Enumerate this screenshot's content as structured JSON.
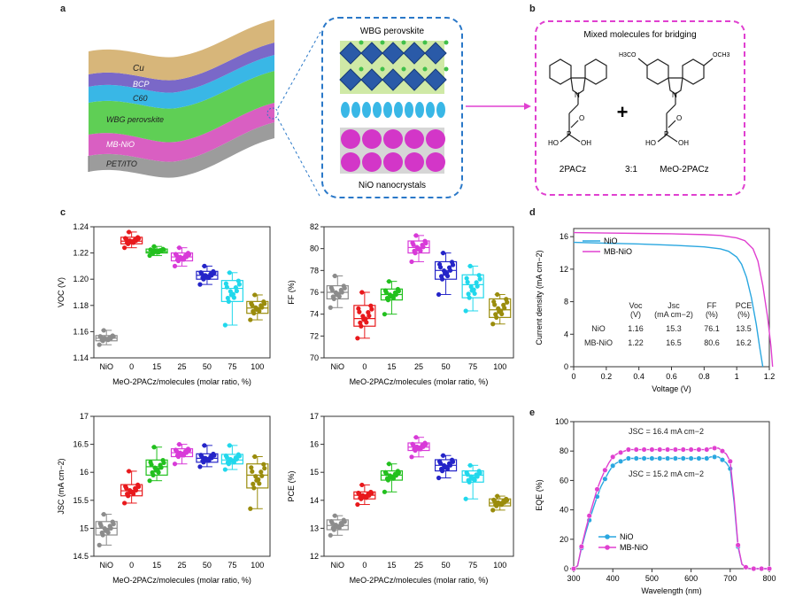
{
  "panel_letters": {
    "a": "a",
    "b": "b",
    "c": "c",
    "d": "d",
    "e": "e"
  },
  "panel_a": {
    "layers": [
      "Cu",
      "BCP",
      "C60",
      "WBG perovskite",
      "MB-NiO",
      "PET/ITO"
    ],
    "inset_top": "WBG perovskite",
    "inset_bottom": "NiO nanocrystals",
    "colors": {
      "cu": "#d7b67a",
      "bcp": "#7a68c8",
      "c60": "#39b7e6",
      "perovskite": "#5fcf55",
      "mbnio": "#d95fc2",
      "petito": "#9c9c9c",
      "inset_border": "#2a78c8",
      "magenta_border": "#e040d0"
    }
  },
  "panel_b": {
    "title": "Mixed molecules for bridging",
    "molecule_left": "2PACz",
    "ratio": "3:1",
    "molecule_right": "MeO-2PACz",
    "plus": "+",
    "atoms": {
      "n": "N",
      "p": "P",
      "o": "O",
      "ho": "HO",
      "oh": "OH",
      "h3co": "H3CO",
      "och3": "OCH3"
    }
  },
  "panel_c_xlabel": "MeO-2PACz/molecules (molar ratio, %)",
  "panel_d_table": {
    "header": [
      "",
      "Voc\n(V)",
      "Jsc\n(mA cm−2)",
      "FF\n(%)",
      "PCE\n(%)"
    ],
    "rows": [
      [
        "NiO",
        "1.16",
        "15.3",
        "76.1",
        "13.5"
      ],
      [
        "MB-NiO",
        "1.22",
        "16.5",
        "80.6",
        "16.2"
      ]
    ]
  },
  "panel_e_annotations": {
    "mb": "JSC = 16.4 mA cm−2",
    "nio": "JSC = 15.2 mA cm−2"
  },
  "chart_data": [
    {
      "id": "voc",
      "type": "box",
      "ylabel": "VOC (V)",
      "categories": [
        "NiO",
        "0",
        "15",
        "25",
        "50",
        "75",
        "100"
      ],
      "ylim": [
        1.14,
        1.24
      ],
      "yticks": [
        1.14,
        1.16,
        1.18,
        1.2,
        1.22,
        1.24
      ],
      "colors": [
        "#8c8c8c",
        "#e8191c",
        "#22c01e",
        "#d83ad8",
        "#2424c8",
        "#21d8ec",
        "#9a8c0c"
      ],
      "stats": [
        [
          1.15,
          1.153,
          1.155,
          1.157,
          1.161
        ],
        [
          1.224,
          1.227,
          1.229,
          1.232,
          1.236
        ],
        [
          1.218,
          1.22,
          1.221,
          1.223,
          1.225
        ],
        [
          1.21,
          1.214,
          1.217,
          1.22,
          1.224
        ],
        [
          1.196,
          1.2,
          1.203,
          1.206,
          1.21
        ],
        [
          1.165,
          1.183,
          1.193,
          1.199,
          1.205
        ],
        [
          1.169,
          1.174,
          1.178,
          1.183,
          1.188
        ]
      ]
    },
    {
      "id": "ff",
      "type": "box",
      "ylabel": "FF (%)",
      "categories": [
        "NiO",
        "0",
        "15",
        "25",
        "50",
        "75",
        "100"
      ],
      "ylim": [
        70,
        82
      ],
      "yticks": [
        70,
        72,
        74,
        76,
        78,
        80,
        82
      ],
      "colors": [
        "#8c8c8c",
        "#e8191c",
        "#22c01e",
        "#d83ad8",
        "#2424c8",
        "#21d8ec",
        "#9a8c0c"
      ],
      "stats": [
        [
          74.6,
          75.4,
          76.0,
          76.6,
          77.5
        ],
        [
          71.8,
          72.9,
          73.6,
          74.8,
          76.0
        ],
        [
          74.0,
          75.3,
          75.8,
          76.3,
          77.0
        ],
        [
          78.8,
          79.6,
          80.1,
          80.7,
          81.2
        ],
        [
          75.8,
          77.2,
          78.0,
          78.8,
          79.6
        ],
        [
          74.3,
          75.5,
          76.7,
          77.6,
          78.4
        ],
        [
          73.1,
          73.7,
          74.4,
          75.4,
          75.8
        ]
      ]
    },
    {
      "id": "jsc",
      "type": "box",
      "ylabel": "JSC (mA cm−2)",
      "categories": [
        "NiO",
        "0",
        "15",
        "25",
        "50",
        "75",
        "100"
      ],
      "ylim": [
        14.5,
        17.0
      ],
      "yticks": [
        14.5,
        15.0,
        15.5,
        16.0,
        16.5,
        17.0
      ],
      "colors": [
        "#8c8c8c",
        "#e8191c",
        "#22c01e",
        "#d83ad8",
        "#2424c8",
        "#21d8ec",
        "#9a8c0c"
      ],
      "stats": [
        [
          14.7,
          14.88,
          15.0,
          15.12,
          15.25
        ],
        [
          15.45,
          15.58,
          15.67,
          15.78,
          16.02
        ],
        [
          15.85,
          15.95,
          16.1,
          16.22,
          16.45
        ],
        [
          16.15,
          16.28,
          16.35,
          16.42,
          16.5
        ],
        [
          16.1,
          16.18,
          16.25,
          16.33,
          16.48
        ],
        [
          16.05,
          16.15,
          16.22,
          16.32,
          16.48
        ],
        [
          15.35,
          15.72,
          15.95,
          16.15,
          16.28
        ]
      ]
    },
    {
      "id": "pce",
      "type": "box",
      "ylabel": "PCE (%)",
      "categories": [
        "NiO",
        "0",
        "15",
        "25",
        "50",
        "75",
        "100"
      ],
      "ylim": [
        12,
        17
      ],
      "yticks": [
        12,
        13,
        14,
        15,
        16,
        17
      ],
      "colors": [
        "#8c8c8c",
        "#e8191c",
        "#22c01e",
        "#d83ad8",
        "#2424c8",
        "#21d8ec",
        "#9a8c0c"
      ],
      "stats": [
        [
          12.75,
          12.95,
          13.1,
          13.3,
          13.45
        ],
        [
          13.85,
          14.05,
          14.18,
          14.3,
          14.55
        ],
        [
          14.3,
          14.72,
          14.9,
          15.05,
          15.3
        ],
        [
          15.55,
          15.78,
          15.9,
          16.05,
          16.25
        ],
        [
          14.8,
          15.05,
          15.25,
          15.45,
          15.6
        ],
        [
          14.05,
          14.65,
          14.9,
          15.05,
          15.25
        ],
        [
          13.65,
          13.8,
          13.9,
          14.05,
          14.15
        ]
      ]
    },
    {
      "id": "jv",
      "type": "line",
      "xlabel": "Voltage (V)",
      "ylabel": "Current density (mA cm−2)",
      "xlim": [
        0,
        1.2
      ],
      "ylim": [
        0,
        17
      ],
      "xticks": [
        0,
        0.2,
        0.4,
        0.6,
        0.8,
        1.0,
        1.2
      ],
      "yticks": [
        0,
        4,
        8,
        12,
        16
      ],
      "series": [
        {
          "name": "NiO",
          "color": "#2aa7e0",
          "x": [
            0,
            0.2,
            0.4,
            0.6,
            0.8,
            0.9,
            0.95,
            1.0,
            1.03,
            1.06,
            1.09,
            1.12,
            1.14,
            1.16
          ],
          "y": [
            15.3,
            15.2,
            15.1,
            14.95,
            14.75,
            14.5,
            14.2,
            13.5,
            12.6,
            11.0,
            8.5,
            5.2,
            2.5,
            0
          ]
        },
        {
          "name": "MB-NiO",
          "color": "#e040d0",
          "x": [
            0,
            0.2,
            0.4,
            0.6,
            0.8,
            0.9,
            1.0,
            1.05,
            1.1,
            1.13,
            1.16,
            1.19,
            1.21,
            1.22
          ],
          "y": [
            16.5,
            16.45,
            16.4,
            16.35,
            16.25,
            16.15,
            15.85,
            15.5,
            14.5,
            13.0,
            10.0,
            6.0,
            2.5,
            0
          ]
        }
      ]
    },
    {
      "id": "eqe",
      "type": "line",
      "xlabel": "Wavelength (nm)",
      "ylabel": "EQE (%)",
      "xlim": [
        300,
        800
      ],
      "ylim": [
        0,
        100
      ],
      "xticks": [
        300,
        400,
        500,
        600,
        700,
        800
      ],
      "yticks": [
        0,
        20,
        40,
        60,
        80,
        100
      ],
      "series": [
        {
          "name": "NiO",
          "color": "#2aa7e0",
          "x": [
            300,
            310,
            320,
            330,
            340,
            350,
            360,
            370,
            380,
            390,
            400,
            410,
            420,
            430,
            440,
            450,
            460,
            470,
            480,
            490,
            500,
            510,
            520,
            530,
            540,
            550,
            560,
            570,
            580,
            590,
            600,
            610,
            620,
            630,
            640,
            650,
            660,
            670,
            680,
            690,
            700,
            710,
            720,
            730,
            740,
            750,
            760,
            770,
            780,
            790,
            800
          ],
          "y": [
            0,
            2,
            14,
            24,
            33,
            41,
            49,
            56,
            61,
            66,
            70,
            72,
            73,
            74,
            75,
            75,
            75,
            75,
            75,
            75,
            75,
            75,
            75,
            75,
            75,
            75,
            75,
            75,
            75,
            75,
            75,
            75,
            75,
            75,
            75,
            76,
            76,
            76,
            74,
            72,
            68,
            45,
            15,
            3,
            1,
            0,
            0,
            0,
            0,
            0,
            0
          ]
        },
        {
          "name": "MB-NiO",
          "color": "#e040d0",
          "x": [
            300,
            310,
            320,
            330,
            340,
            350,
            360,
            370,
            380,
            390,
            400,
            410,
            420,
            430,
            440,
            450,
            460,
            470,
            480,
            490,
            500,
            510,
            520,
            530,
            540,
            550,
            560,
            570,
            580,
            590,
            600,
            610,
            620,
            630,
            640,
            650,
            660,
            670,
            680,
            690,
            700,
            710,
            720,
            730,
            740,
            750,
            760,
            770,
            780,
            790,
            800
          ],
          "y": [
            0,
            2,
            15,
            26,
            36,
            45,
            54,
            61,
            67,
            72,
            76,
            78,
            79,
            80,
            81,
            81,
            81,
            81,
            81,
            81,
            81,
            81,
            81,
            81,
            81,
            81,
            81,
            81,
            81,
            81,
            81,
            81,
            81,
            81,
            81,
            82,
            82,
            82,
            80,
            78,
            73,
            48,
            16,
            3,
            1,
            0,
            0,
            0,
            0,
            0,
            0
          ]
        }
      ]
    }
  ]
}
